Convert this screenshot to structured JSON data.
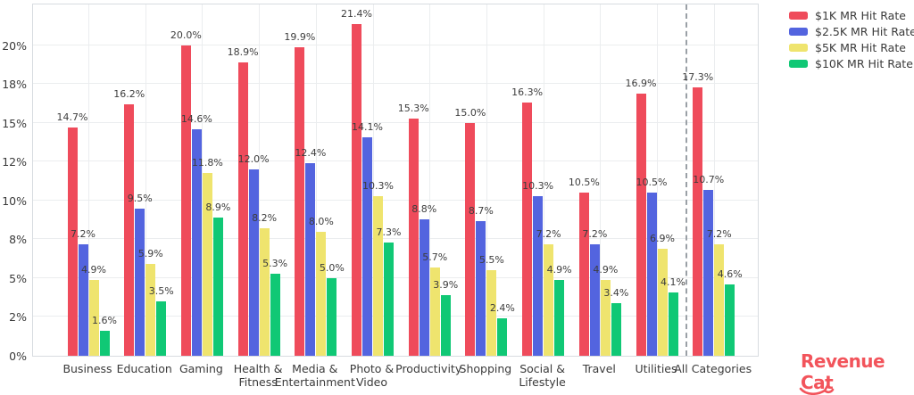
{
  "chart_data": {
    "type": "bar",
    "title": "",
    "xlabel": "",
    "ylabel": "",
    "categories": [
      "Business",
      "Education",
      "Gaming",
      "Health &\nFitness",
      "Media &\nEntertainment",
      "Photo &\nVideo",
      "Productivity",
      "Shopping",
      "Social &\nLifestyle",
      "Travel",
      "Utilities",
      "All Categories"
    ],
    "series": [
      {
        "name": "$1K MR Hit Rate",
        "color": "#EF4B5B",
        "values": [
          14.7,
          16.2,
          20.0,
          18.9,
          19.9,
          21.4,
          15.3,
          15.0,
          16.3,
          10.5,
          16.9,
          17.3
        ]
      },
      {
        "name": "$2.5K MR Hit Rate",
        "color": "#5364DF",
        "values": [
          7.2,
          9.5,
          14.6,
          12.0,
          12.4,
          14.1,
          8.8,
          8.7,
          10.3,
          7.2,
          10.5,
          10.7
        ]
      },
      {
        "name": "$5K MR Hit Rate",
        "color": "#EFE46E",
        "values": [
          4.9,
          5.9,
          11.8,
          8.2,
          8.0,
          10.3,
          5.7,
          5.5,
          7.2,
          4.9,
          6.9,
          7.2
        ]
      },
      {
        "name": "$10K MR Hit Rate",
        "color": "#10C875",
        "values": [
          1.6,
          3.5,
          8.9,
          5.3,
          5.0,
          7.3,
          3.9,
          2.4,
          4.9,
          3.4,
          4.1,
          4.6
        ]
      }
    ],
    "value_label_format": "{v}%",
    "y_ticks": [
      0,
      2.5,
      5,
      7.5,
      10,
      12.5,
      15,
      17.5,
      20
    ],
    "y_tick_labels": [
      "0%",
      "2%",
      "5%",
      "8%",
      "10%",
      "12%",
      "15%",
      "18%",
      "20%"
    ],
    "ylim": [
      0,
      22.75
    ],
    "grid": true,
    "legend_position": "top-right",
    "separator_before_category": "All Categories",
    "colors": {
      "grid": "#ebedef",
      "plot_border": "#d8dce0",
      "separator": "#9aa0a6",
      "tick_text": "#3a3a3a",
      "value_text": "#3d3d3d"
    }
  },
  "branding": {
    "logo_text_part1": "Revenue",
    "logo_text_part2": "Cat",
    "logo_color": "#F2545B"
  }
}
